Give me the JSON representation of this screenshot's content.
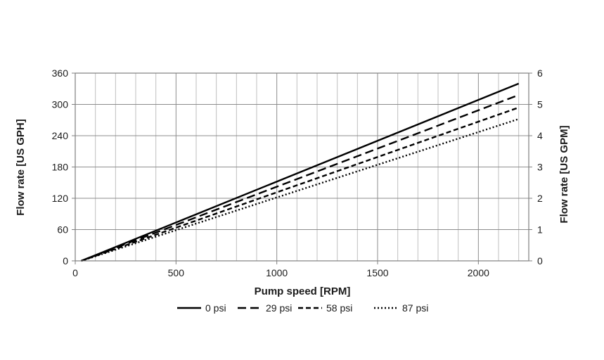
{
  "chart_data": {
    "type": "line",
    "title": "",
    "xlabel": "Pump speed [RPM]",
    "ylabel": "Flow rate  [US GPH]",
    "y2label": "Flow rate  [US GPM]",
    "xlim": [
      0,
      2250
    ],
    "ylim": [
      0,
      360
    ],
    "y2lim": [
      0,
      6
    ],
    "x_ticks": [
      0,
      500,
      1000,
      1500,
      2000
    ],
    "y_ticks": [
      0,
      60,
      120,
      180,
      240,
      300,
      360
    ],
    "y2_ticks": [
      0,
      1,
      2,
      3,
      4,
      5,
      6
    ],
    "grid": true,
    "legend_position": "bottom",
    "series": [
      {
        "name": "0 psi",
        "x": [
          30,
          2200
        ],
        "y": [
          0,
          340
        ],
        "dash": "solid"
      },
      {
        "name": "29 psi",
        "x": [
          30,
          2200
        ],
        "y": [
          0,
          318
        ],
        "dash": "long-dash"
      },
      {
        "name": "58 psi",
        "x": [
          30,
          2200
        ],
        "y": [
          0,
          294
        ],
        "dash": "short-dash"
      },
      {
        "name": "87 psi",
        "x": [
          30,
          2200
        ],
        "y": [
          0,
          272
        ],
        "dash": "dotted"
      }
    ]
  }
}
